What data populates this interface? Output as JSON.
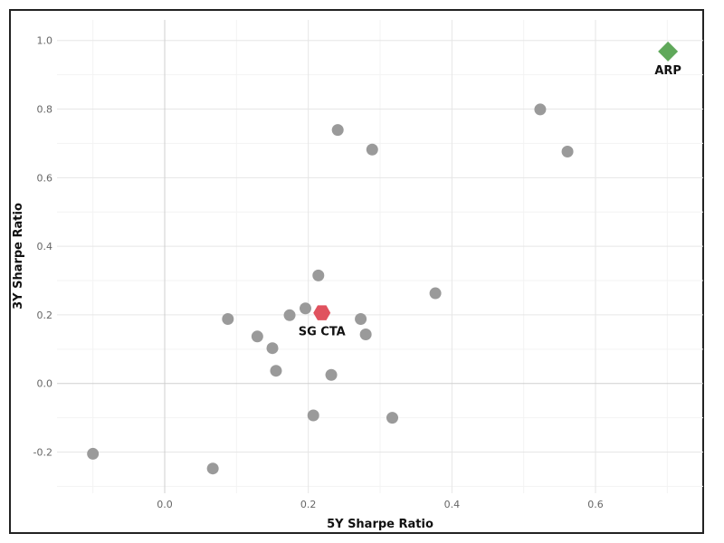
{
  "chart_data": {
    "type": "scatter",
    "xlabel": "5Y Sharpe Ratio",
    "ylabel": "3Y Sharpe Ratio",
    "xlim": [
      -0.15,
      0.75
    ],
    "ylim": [
      -0.32,
      1.06
    ],
    "x_ticks": [
      0.0,
      0.2,
      0.4,
      0.6
    ],
    "x_tick_labels": [
      "0.0",
      "0.2",
      "0.4",
      "0.6"
    ],
    "y_ticks": [
      -0.2,
      0.0,
      0.2,
      0.4,
      0.6,
      0.8,
      1.0
    ],
    "y_tick_labels": [
      "-0.2",
      "0.0",
      "0.2",
      "0.4",
      "0.6",
      "0.8",
      "1.0"
    ],
    "grid": true,
    "series": [
      {
        "marker": "circle",
        "color": "#9a9a9a",
        "points": [
          {
            "x": -0.1,
            "y": -0.205
          },
          {
            "x": 0.067,
            "y": -0.248
          },
          {
            "x": 0.088,
            "y": 0.188
          },
          {
            "x": 0.129,
            "y": 0.137
          },
          {
            "x": 0.15,
            "y": 0.103
          },
          {
            "x": 0.155,
            "y": 0.037
          },
          {
            "x": 0.174,
            "y": 0.199
          },
          {
            "x": 0.196,
            "y": 0.219
          },
          {
            "x": 0.207,
            "y": -0.093
          },
          {
            "x": 0.214,
            "y": 0.315
          },
          {
            "x": 0.232,
            "y": 0.025
          },
          {
            "x": 0.241,
            "y": 0.739
          },
          {
            "x": 0.273,
            "y": 0.188
          },
          {
            "x": 0.28,
            "y": 0.143
          },
          {
            "x": 0.289,
            "y": 0.682
          },
          {
            "x": 0.317,
            "y": -0.1
          },
          {
            "x": 0.377,
            "y": 0.263
          },
          {
            "x": 0.523,
            "y": 0.799
          },
          {
            "x": 0.561,
            "y": 0.676
          }
        ]
      },
      {
        "marker": "hexagon",
        "color": "#e0525e",
        "points": [
          {
            "x": 0.219,
            "y": 0.206,
            "label": "SG CTA"
          }
        ]
      },
      {
        "marker": "diamond",
        "color": "#5fa85a",
        "points": [
          {
            "x": 0.701,
            "y": 0.968,
            "label": "ARP"
          }
        ]
      }
    ]
  }
}
